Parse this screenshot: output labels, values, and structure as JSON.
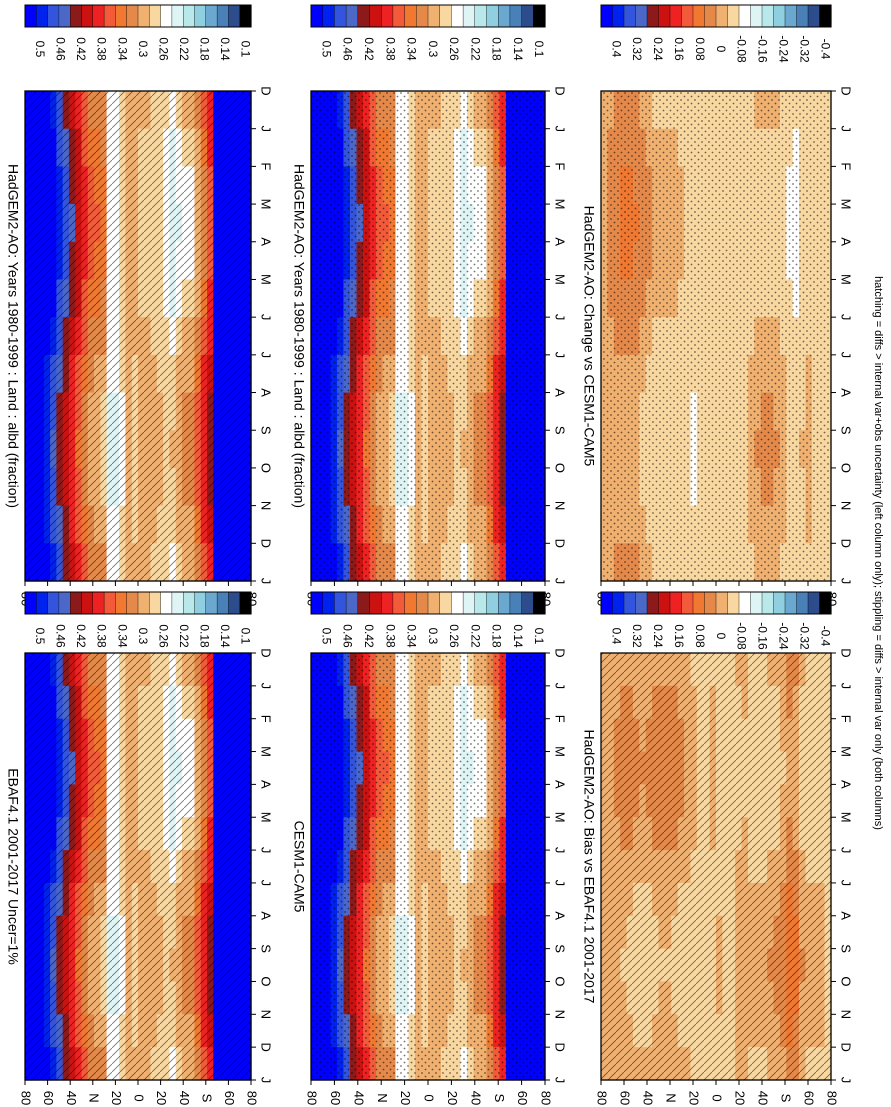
{
  "figure": {
    "footnote": "hatching = diffs > internal var+obs uncertainty (left column only); stippling = diffs > internal var only (both columns)"
  },
  "colors": {
    "abs_scale": [
      "#0000ff",
      "#0022ee",
      "#3355dd",
      "#4b68c9",
      "#8c1a1a",
      "#cc1111",
      "#ee2222",
      "#f25a3a",
      "#f07830",
      "#e4894a",
      "#f0b070",
      "#f8d8a0",
      "#ffffff",
      "#dff5f5",
      "#b8e8ea",
      "#8fcfe0",
      "#6aa8d0",
      "#4a80b8",
      "#2c4c8c",
      "#000000"
    ],
    "diff_scale": [
      "#0000ff",
      "#0022ee",
      "#3355dd",
      "#4b68c9",
      "#8c1a1a",
      "#cc1111",
      "#ee2222",
      "#f25a3a",
      "#f07830",
      "#e4894a",
      "#f0b070",
      "#f8d8a0",
      "#ffffff",
      "#dff5f5",
      "#b8e8ea",
      "#8fcfe0",
      "#6aa8d0",
      "#4a80b8",
      "#2c4c8c",
      "#000000"
    ]
  },
  "chart_data": [
    {
      "type": "heatmap",
      "id": "model-left",
      "title": "HadGEM2-AO: Years 1980-1999 : Land : albd (fraction)",
      "months": [
        "D",
        "J",
        "F",
        "M",
        "A",
        "M",
        "J",
        "J",
        "A",
        "S",
        "O",
        "N",
        "D",
        "J"
      ],
      "lat_ticks": [
        "80",
        "60",
        "40",
        "N",
        "20",
        "0",
        "20",
        "40",
        "S",
        "60",
        "80"
      ],
      "colorbar": [
        "0.5",
        "0.46",
        "0.42",
        "0.38",
        "0.34",
        "0.3",
        "0.26",
        "0.22",
        "0.18",
        "0.14",
        "0.1"
      ],
      "overlay": "hatching",
      "lat_profile": [
        {
          "lat": -90,
          "v": 0.6
        },
        {
          "lat": -80,
          "v": 0.6
        },
        {
          "lat": -72,
          "v": 0.6
        },
        {
          "lat": -62,
          "v": 0.6
        },
        {
          "lat": -58,
          "v": 0.4
        },
        {
          "lat": -50,
          "v": 0.35
        },
        {
          "lat": -42,
          "v": 0.3
        },
        {
          "lat": -35,
          "v": 0.3
        },
        {
          "lat": -28,
          "v": 0.27
        },
        {
          "lat": -20,
          "v": 0.29
        },
        {
          "lat": -10,
          "v": 0.3
        },
        {
          "lat": 0,
          "v": 0.3
        },
        {
          "lat": 8,
          "v": 0.31
        },
        {
          "lat": 16,
          "v": 0.27
        },
        {
          "lat": 22,
          "v": 0.26
        },
        {
          "lat": 28,
          "v": 0.33
        },
        {
          "lat": 36,
          "v": 0.33
        },
        {
          "lat": 90,
          "v": 0.6
        }
      ]
    },
    {
      "type": "heatmap",
      "id": "model-right",
      "title": "HadGEM2-AO: Years 1980-1999 : Land : albd (fraction)",
      "months": [
        "D",
        "J",
        "F",
        "M",
        "A",
        "M",
        "J",
        "J",
        "A",
        "S",
        "O",
        "N",
        "D",
        "J"
      ],
      "lat_ticks": [
        "80",
        "60",
        "40",
        "N",
        "20",
        "0",
        "20",
        "40",
        "S",
        "60",
        "80"
      ],
      "colorbar": [
        "0.5",
        "0.46",
        "0.42",
        "0.38",
        "0.34",
        "0.3",
        "0.26",
        "0.22",
        "0.18",
        "0.14",
        "0.1"
      ],
      "overlay": "stippling",
      "lat_profile": [
        {
          "lat": -90,
          "v": 0.6
        },
        {
          "lat": -80,
          "v": 0.6
        },
        {
          "lat": -72,
          "v": 0.6
        },
        {
          "lat": -62,
          "v": 0.6
        },
        {
          "lat": -58,
          "v": 0.4
        },
        {
          "lat": -50,
          "v": 0.35
        },
        {
          "lat": -42,
          "v": 0.3
        },
        {
          "lat": -35,
          "v": 0.3
        },
        {
          "lat": -28,
          "v": 0.27
        },
        {
          "lat": -20,
          "v": 0.29
        },
        {
          "lat": -10,
          "v": 0.3
        },
        {
          "lat": 0,
          "v": 0.3
        },
        {
          "lat": 8,
          "v": 0.31
        },
        {
          "lat": 16,
          "v": 0.27
        },
        {
          "lat": 22,
          "v": 0.26
        },
        {
          "lat": 28,
          "v": 0.33
        },
        {
          "lat": 36,
          "v": 0.33
        },
        {
          "lat": 90,
          "v": 0.6
        }
      ]
    },
    {
      "type": "heatmap",
      "id": "obs",
      "title": "EBAF4.1 2001-2017 Uncer=1%",
      "months": [
        "D",
        "J",
        "F",
        "M",
        "A",
        "M",
        "J",
        "J",
        "A",
        "S",
        "O",
        "N",
        "D",
        "J"
      ],
      "lat_ticks": [
        "80",
        "60",
        "40",
        "N",
        "20",
        "0",
        "20",
        "40",
        "S",
        "60",
        "80"
      ],
      "colorbar": [
        "0.5",
        "0.46",
        "0.42",
        "0.38",
        "0.34",
        "0.3",
        "0.26",
        "0.22",
        "0.18",
        "0.14",
        "0.1"
      ],
      "overlay": "hatching",
      "lat_profile": [
        {
          "lat": -90,
          "v": 0.6
        },
        {
          "lat": -80,
          "v": 0.6
        },
        {
          "lat": -72,
          "v": 0.6
        },
        {
          "lat": -62,
          "v": 0.6
        },
        {
          "lat": -58,
          "v": 0.4
        },
        {
          "lat": -50,
          "v": 0.35
        },
        {
          "lat": -42,
          "v": 0.3
        },
        {
          "lat": -35,
          "v": 0.3
        },
        {
          "lat": -28,
          "v": 0.27
        },
        {
          "lat": -20,
          "v": 0.29
        },
        {
          "lat": -10,
          "v": 0.3
        },
        {
          "lat": 0,
          "v": 0.3
        },
        {
          "lat": 8,
          "v": 0.31
        },
        {
          "lat": 16,
          "v": 0.27
        },
        {
          "lat": 22,
          "v": 0.26
        },
        {
          "lat": 28,
          "v": 0.33
        },
        {
          "lat": 36,
          "v": 0.33
        },
        {
          "lat": 90,
          "v": 0.6
        }
      ]
    },
    {
      "type": "heatmap",
      "id": "cesm",
      "title": "CESM1-CAM5",
      "months": [
        "D",
        "J",
        "F",
        "M",
        "A",
        "M",
        "J",
        "J",
        "A",
        "S",
        "O",
        "N",
        "D",
        "J"
      ],
      "lat_ticks": [
        "80",
        "60",
        "40",
        "N",
        "20",
        "0",
        "20",
        "40",
        "S",
        "60",
        "80"
      ],
      "colorbar": [
        "0.5",
        "0.46",
        "0.42",
        "0.38",
        "0.34",
        "0.3",
        "0.26",
        "0.22",
        "0.18",
        "0.14",
        "0.1"
      ],
      "overlay": "stippling",
      "lat_profile": [
        {
          "lat": -90,
          "v": 0.6
        },
        {
          "lat": -80,
          "v": 0.6
        },
        {
          "lat": -72,
          "v": 0.6
        },
        {
          "lat": -62,
          "v": 0.6
        },
        {
          "lat": -58,
          "v": 0.4
        },
        {
          "lat": -50,
          "v": 0.35
        },
        {
          "lat": -42,
          "v": 0.3
        },
        {
          "lat": -35,
          "v": 0.3
        },
        {
          "lat": -28,
          "v": 0.27
        },
        {
          "lat": -20,
          "v": 0.29
        },
        {
          "lat": -10,
          "v": 0.3
        },
        {
          "lat": 0,
          "v": 0.3
        },
        {
          "lat": 8,
          "v": 0.31
        },
        {
          "lat": 16,
          "v": 0.27
        },
        {
          "lat": 22,
          "v": 0.26
        },
        {
          "lat": 28,
          "v": 0.33
        },
        {
          "lat": 36,
          "v": 0.33
        },
        {
          "lat": 90,
          "v": 0.6
        }
      ]
    },
    {
      "type": "heatmap",
      "id": "bias",
      "title": "HadGEM2-AO: Bias vs EBAF4.1 2001-2017",
      "months": [
        "D",
        "J",
        "F",
        "M",
        "A",
        "M",
        "J",
        "J",
        "A",
        "S",
        "O",
        "N",
        "D",
        "J"
      ],
      "lat_ticks": [
        "80",
        "60",
        "40",
        "N",
        "20",
        "0",
        "20",
        "40",
        "S",
        "60",
        "80"
      ],
      "colorbar": [
        "0.4",
        "0.32",
        "0.24",
        "0.16",
        "0.08",
        "0",
        "-0.08",
        "-0.16",
        "-0.24",
        "-0.32",
        "-0.4"
      ],
      "overlay": "hatching",
      "lat_profile": [
        {
          "lat": -90,
          "v": 0.03
        },
        {
          "lat": -80,
          "v": 0.04
        },
        {
          "lat": -70,
          "v": 0.03
        },
        {
          "lat": -60,
          "v": 0.08
        },
        {
          "lat": -50,
          "v": 0.05
        },
        {
          "lat": -40,
          "v": 0.04
        },
        {
          "lat": -30,
          "v": 0.03
        },
        {
          "lat": -20,
          "v": 0.05
        },
        {
          "lat": -10,
          "v": 0.02
        },
        {
          "lat": 0,
          "v": 0.04
        },
        {
          "lat": 10,
          "v": 0.03
        },
        {
          "lat": 20,
          "v": 0.04
        },
        {
          "lat": 30,
          "v": 0.05
        },
        {
          "lat": 40,
          "v": 0.06
        },
        {
          "lat": 50,
          "v": 0.05
        },
        {
          "lat": 60,
          "v": 0.04
        },
        {
          "lat": 70,
          "v": 0.06
        },
        {
          "lat": 90,
          "v": 0.05
        }
      ]
    },
    {
      "type": "heatmap",
      "id": "change",
      "title": "HadGEM2-AO: Change vs CESM1-CAM5",
      "months": [
        "D",
        "J",
        "F",
        "M",
        "A",
        "M",
        "J",
        "J",
        "A",
        "S",
        "O",
        "N",
        "D",
        "J"
      ],
      "lat_ticks": [
        "80",
        "60",
        "40",
        "N",
        "20",
        "0",
        "20",
        "40",
        "S",
        "60",
        "80"
      ],
      "colorbar": [
        "0.4",
        "0.32",
        "0.24",
        "0.16",
        "0.08",
        "0",
        "-0.08",
        "-0.16",
        "-0.24",
        "-0.32",
        "-0.4"
      ],
      "overlay": "stippling",
      "lat_profile": [
        {
          "lat": -90,
          "v": 0.03
        },
        {
          "lat": -80,
          "v": 0.03
        },
        {
          "lat": -70,
          "v": 0.03
        },
        {
          "lat": -62,
          "v": 0.0
        },
        {
          "lat": -50,
          "v": 0.04
        },
        {
          "lat": -40,
          "v": 0.05
        },
        {
          "lat": -30,
          "v": 0.04
        },
        {
          "lat": -20,
          "v": 0.02
        },
        {
          "lat": -10,
          "v": 0.02
        },
        {
          "lat": 0,
          "v": 0.01
        },
        {
          "lat": 10,
          "v": 0.02
        },
        {
          "lat": 20,
          "v": 0.0
        },
        {
          "lat": 30,
          "v": 0.04
        },
        {
          "lat": 40,
          "v": 0.03
        },
        {
          "lat": 50,
          "v": 0.04
        },
        {
          "lat": 60,
          "v": 0.06
        },
        {
          "lat": 70,
          "v": 0.07
        },
        {
          "lat": 90,
          "v": 0.05
        }
      ]
    }
  ]
}
